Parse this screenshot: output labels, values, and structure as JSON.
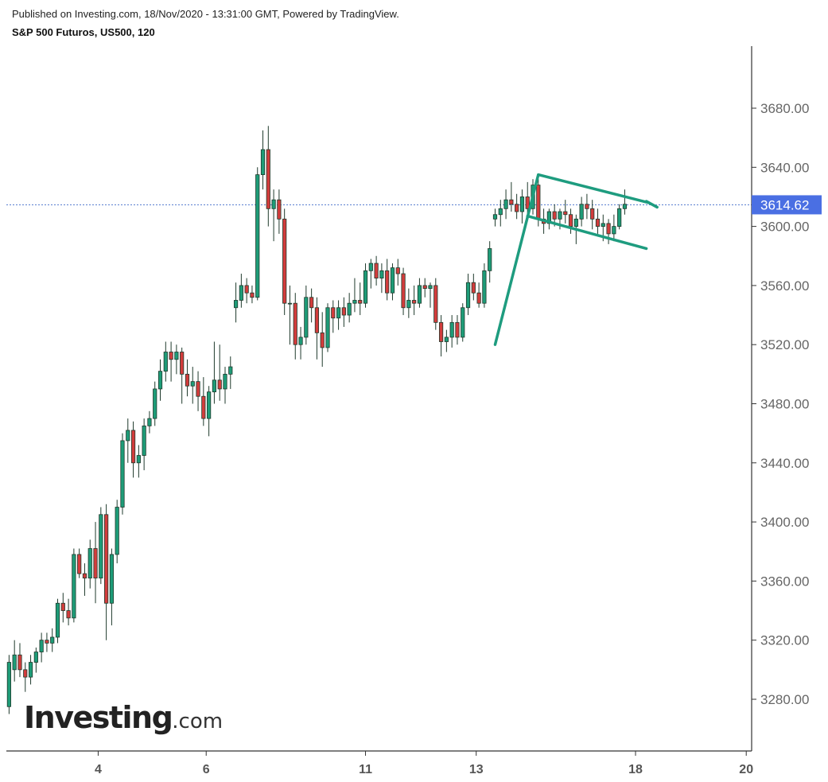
{
  "header": {
    "published": "Published on Investing.com, 18/Nov/2020 - 13:31:00 GMT, Powered by TradingView.",
    "symbol": "S&P 500 Futuros, US500, 120"
  },
  "logo": {
    "main": "Investing",
    "suffix": ".com"
  },
  "colors": {
    "up": "#1e9c78",
    "down": "#d23c3c",
    "wick": "#1f3a2c",
    "trend": "#1e9c7f",
    "price_line": "#5a7fd1",
    "price_label_bg": "#4a6fe3",
    "axis": "#333333"
  },
  "chart_data": {
    "type": "candlestick",
    "title": "S&P 500 Futuros, US500, 120",
    "yticks": [
      3280,
      3320,
      3360,
      3400,
      3440,
      3480,
      3520,
      3560,
      3600,
      3640,
      3680
    ],
    "ytick_labels": [
      "3280.00",
      "3320.00",
      "3360.00",
      "3400.00",
      "3440.00",
      "3480.00",
      "3520.00",
      "3560.00",
      "3600.00",
      "3640.00",
      "3680.00"
    ],
    "ylim": [
      3245,
      3722
    ],
    "xlim": [
      0,
      138
    ],
    "xticks": [
      {
        "x": 17,
        "label": "4"
      },
      {
        "x": 37,
        "label": "6"
      },
      {
        "x": 66.5,
        "label": "11"
      },
      {
        "x": 87,
        "label": "13"
      },
      {
        "x": 116.5,
        "label": "18"
      },
      {
        "x": 137,
        "label": "20"
      }
    ],
    "last_price": 3614.62,
    "last_price_label": "3614.62",
    "candles": [
      [
        3275,
        3310,
        3270,
        3305
      ],
      [
        3300,
        3320,
        3292,
        3310
      ],
      [
        3310,
        3318,
        3295,
        3300
      ],
      [
        3300,
        3305,
        3285,
        3295
      ],
      [
        3295,
        3310,
        3290,
        3305
      ],
      [
        3305,
        3315,
        3298,
        3312
      ],
      [
        3312,
        3325,
        3305,
        3320
      ],
      [
        3320,
        3325,
        3312,
        3318
      ],
      [
        3318,
        3328,
        3312,
        3322
      ],
      [
        3322,
        3348,
        3318,
        3345
      ],
      [
        3345,
        3352,
        3332,
        3340
      ],
      [
        3340,
        3348,
        3330,
        3335
      ],
      [
        3335,
        3382,
        3332,
        3378
      ],
      [
        3378,
        3382,
        3362,
        3365
      ],
      [
        3365,
        3372,
        3350,
        3362
      ],
      [
        3362,
        3388,
        3355,
        3382
      ],
      [
        3382,
        3400,
        3345,
        3362
      ],
      [
        3362,
        3410,
        3358,
        3405
      ],
      [
        3405,
        3412,
        3320,
        3345
      ],
      [
        3345,
        3382,
        3330,
        3378
      ],
      [
        3378,
        3415,
        3372,
        3410
      ],
      [
        3410,
        3460,
        3405,
        3455
      ],
      [
        3455,
        3470,
        3440,
        3462
      ],
      [
        3462,
        3468,
        3430,
        3440
      ],
      [
        3440,
        3452,
        3430,
        3445
      ],
      [
        3445,
        3470,
        3435,
        3465
      ],
      [
        3465,
        3475,
        3460,
        3470
      ],
      [
        3470,
        3495,
        3465,
        3490
      ],
      [
        3490,
        3510,
        3482,
        3502
      ],
      [
        3502,
        3522,
        3495,
        3515
      ],
      [
        3515,
        3522,
        3495,
        3510
      ],
      [
        3510,
        3520,
        3500,
        3515
      ],
      [
        3515,
        3518,
        3480,
        3500
      ],
      [
        3500,
        3510,
        3485,
        3492
      ],
      [
        3492,
        3505,
        3480,
        3495
      ],
      [
        3495,
        3502,
        3475,
        3485
      ],
      [
        3485,
        3498,
        3465,
        3470
      ],
      [
        3470,
        3492,
        3458,
        3488
      ],
      [
        3488,
        3522,
        3480,
        3496
      ],
      [
        3496,
        3520,
        3482,
        3490
      ],
      [
        3490,
        3505,
        3480,
        3500
      ],
      [
        3500,
        3512,
        3490,
        3505
      ],
      [
        3545,
        3562,
        3535,
        3550
      ],
      [
        3550,
        3568,
        3545,
        3560
      ],
      [
        3560,
        3565,
        3548,
        3555
      ],
      [
        3555,
        3560,
        3548,
        3552
      ],
      [
        3552,
        3640,
        3550,
        3635
      ],
      [
        3635,
        3665,
        3625,
        3652
      ],
      [
        3652,
        3668,
        3600,
        3612
      ],
      [
        3612,
        3625,
        3590,
        3618
      ],
      [
        3618,
        3625,
        3595,
        3605
      ],
      [
        3605,
        3612,
        3540,
        3548
      ],
      [
        3548,
        3560,
        3520,
        3548
      ],
      [
        3548,
        3555,
        3510,
        3520
      ],
      [
        3520,
        3532,
        3510,
        3525
      ],
      [
        3525,
        3560,
        3520,
        3552
      ],
      [
        3552,
        3558,
        3535,
        3545
      ],
      [
        3545,
        3552,
        3510,
        3528
      ],
      [
        3528,
        3542,
        3505,
        3518
      ],
      [
        3518,
        3548,
        3515,
        3545
      ],
      [
        3545,
        3550,
        3528,
        3538
      ],
      [
        3538,
        3550,
        3530,
        3545
      ],
      [
        3545,
        3552,
        3532,
        3540
      ],
      [
        3540,
        3555,
        3535,
        3548
      ],
      [
        3548,
        3565,
        3542,
        3550
      ],
      [
        3550,
        3562,
        3540,
        3548
      ],
      [
        3548,
        3575,
        3545,
        3570
      ],
      [
        3570,
        3578,
        3558,
        3575
      ],
      [
        3575,
        3580,
        3560,
        3565
      ],
      [
        3565,
        3575,
        3555,
        3570
      ],
      [
        3570,
        3578,
        3550,
        3555
      ],
      [
        3555,
        3575,
        3550,
        3572
      ],
      [
        3572,
        3578,
        3560,
        3568
      ],
      [
        3568,
        3572,
        3540,
        3545
      ],
      [
        3545,
        3558,
        3538,
        3550
      ],
      [
        3550,
        3560,
        3540,
        3548
      ],
      [
        3548,
        3565,
        3545,
        3560
      ],
      [
        3560,
        3565,
        3552,
        3558
      ],
      [
        3558,
        3562,
        3545,
        3560
      ],
      [
        3560,
        3565,
        3530,
        3535
      ],
      [
        3535,
        3540,
        3512,
        3522
      ],
      [
        3522,
        3530,
        3515,
        3525
      ],
      [
        3525,
        3540,
        3518,
        3535
      ],
      [
        3535,
        3540,
        3520,
        3525
      ],
      [
        3525,
        3548,
        3522,
        3545
      ],
      [
        3545,
        3568,
        3540,
        3562
      ],
      [
        3562,
        3568,
        3550,
        3555
      ],
      [
        3555,
        3562,
        3545,
        3548
      ],
      [
        3548,
        3575,
        3545,
        3570
      ],
      [
        3570,
        3590,
        3562,
        3585
      ],
      [
        3605,
        3612,
        3600,
        3608
      ],
      [
        3608,
        3618,
        3600,
        3612
      ],
      [
        3612,
        3625,
        3605,
        3618
      ],
      [
        3618,
        3630,
        3610,
        3615
      ],
      [
        3615,
        3622,
        3605,
        3610
      ],
      [
        3610,
        3625,
        3602,
        3620
      ],
      [
        3620,
        3630,
        3608,
        3612
      ],
      [
        3612,
        3632,
        3608,
        3628
      ],
      [
        3628,
        3632,
        3600,
        3605
      ],
      [
        3605,
        3612,
        3595,
        3602
      ],
      [
        3602,
        3612,
        3598,
        3610
      ],
      [
        3610,
        3615,
        3600,
        3605
      ],
      [
        3605,
        3612,
        3598,
        3610
      ],
      [
        3610,
        3618,
        3602,
        3608
      ],
      [
        3608,
        3612,
        3595,
        3600
      ],
      [
        3600,
        3608,
        3588,
        3605
      ],
      [
        3605,
        3620,
        3600,
        3615
      ],
      [
        3615,
        3622,
        3605,
        3612
      ],
      [
        3612,
        3618,
        3598,
        3605
      ],
      [
        3605,
        3612,
        3595,
        3600
      ],
      [
        3600,
        3608,
        3590,
        3602
      ],
      [
        3602,
        3605,
        3588,
        3595
      ],
      [
        3595,
        3608,
        3590,
        3600
      ],
      [
        3600,
        3615,
        3598,
        3612
      ],
      [
        3612,
        3625,
        3608,
        3615
      ]
    ],
    "trendlines": [
      {
        "name": "flagpole",
        "points": [
          [
            90.5,
            3520
          ],
          [
            98.5,
            3635
          ]
        ]
      },
      {
        "name": "flag-upper",
        "points": [
          [
            98.5,
            3635
          ],
          [
            119,
            3616
          ]
        ]
      },
      {
        "name": "flag-lower",
        "points": [
          [
            96.5,
            3607
          ],
          [
            118.5,
            3585
          ]
        ]
      },
      {
        "name": "flag-tip",
        "points": [
          [
            118.5,
            3617
          ],
          [
            120.5,
            3613
          ]
        ]
      }
    ]
  }
}
